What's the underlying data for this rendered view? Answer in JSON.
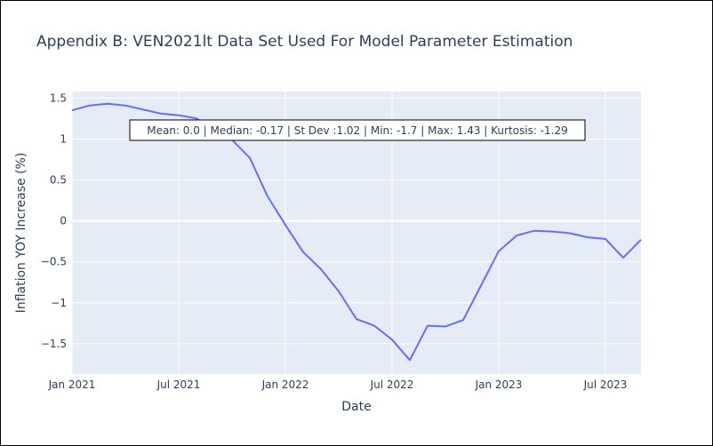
{
  "chart_data": {
    "type": "line",
    "title": "Appendix B: VEN2021lt Data Set Used For Model Parameter Estimation",
    "xlabel": "Date",
    "ylabel": "Inflation YOY Increase (%)",
    "x_tick_labels": [
      "Jan 2021",
      "Jul 2021",
      "Jan 2022",
      "Jul 2022",
      "Jan 2023",
      "Jul 2023"
    ],
    "y_tick_labels": [
      "1.5",
      "1",
      "0.5",
      "0",
      "−0.5",
      "−1",
      "−1.5"
    ],
    "x_tick_months": [
      0,
      6,
      12,
      18,
      24,
      30
    ],
    "y_tick_values": [
      1.5,
      1,
      0.5,
      0,
      -0.5,
      -1,
      -1.5
    ],
    "xlim": [
      "2021-01",
      "2023-09"
    ],
    "ylim": [
      -1.87,
      1.58
    ],
    "grid": true,
    "series": [
      {
        "color": "#636efa",
        "x": [
          "2021-01",
          "2021-02",
          "2021-03",
          "2021-04",
          "2021-05",
          "2021-06",
          "2021-07",
          "2021-08",
          "2021-09",
          "2021-10",
          "2021-11",
          "2021-12",
          "2022-01",
          "2022-02",
          "2022-03",
          "2022-04",
          "2022-05",
          "2022-06",
          "2022-07",
          "2022-08",
          "2022-09",
          "2022-10",
          "2022-11",
          "2022-12",
          "2023-01",
          "2023-02",
          "2023-03",
          "2023-04",
          "2023-05",
          "2023-06",
          "2023-07",
          "2023-08",
          "2023-09"
        ],
        "y": [
          1.35,
          1.41,
          1.43,
          1.41,
          1.36,
          1.31,
          1.29,
          1.25,
          1.12,
          0.99,
          0.77,
          0.3,
          -0.05,
          -0.38,
          -0.59,
          -0.86,
          -1.2,
          -1.28,
          -1.45,
          -1.7,
          -1.28,
          -1.29,
          -1.21,
          -0.79,
          -0.37,
          -0.18,
          -0.12,
          -0.13,
          -0.15,
          -0.2,
          -0.22,
          -0.45,
          -0.23
        ]
      }
    ],
    "annotation": "Mean: 0.0 | Median: -0.17 | St Dev :1.02 | Min: -1.7 | Max: 1.43 | Kurtosis: -1.29",
    "plot_bgcolor": "#e5ecf6",
    "grid_color": "#ffffff",
    "text_color": "#2a3f5f"
  }
}
